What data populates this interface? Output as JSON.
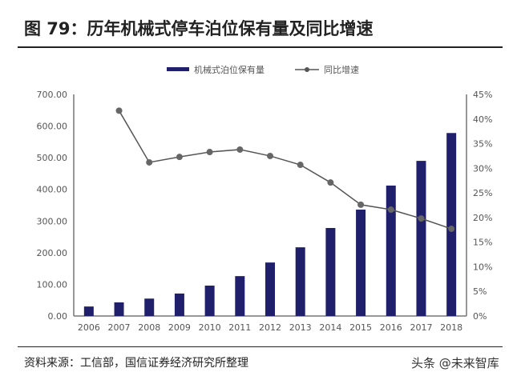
{
  "title": "图 79：历年机械式停车泊位保有量及同比增速",
  "source": "资料来源：工信部，国信证券经济研究所整理",
  "watermark": "头条 @未来智库",
  "colors": {
    "bar": "#1f1f6b",
    "line": "#555555"
  },
  "chart_data": {
    "type": "bar+line",
    "categories": [
      "2006",
      "2007",
      "2008",
      "2009",
      "2010",
      "2011",
      "2012",
      "2013",
      "2014",
      "2015",
      "2016",
      "2017",
      "2018"
    ],
    "series": [
      {
        "name": "机械式泊位保有量",
        "type": "bar",
        "axis": "left",
        "values": [
          30,
          43,
          55,
          71,
          96,
          126,
          169,
          217,
          278,
          336,
          412,
          490,
          578
        ]
      },
      {
        "name": "同比增速",
        "type": "line",
        "axis": "right",
        "values": [
          null,
          41.7,
          31.2,
          32.3,
          33.3,
          33.8,
          32.5,
          30.7,
          27.1,
          22.6,
          21.6,
          19.8,
          17.7
        ]
      }
    ],
    "left_axis": {
      "ylim": [
        0,
        700
      ],
      "ticks": [
        "0.00",
        "100.00",
        "200.00",
        "300.00",
        "400.00",
        "500.00",
        "600.00",
        "700.00"
      ]
    },
    "right_axis": {
      "ylim": [
        0,
        45
      ],
      "ticks": [
        "0%",
        "5%",
        "10%",
        "15%",
        "20%",
        "25%",
        "30%",
        "35%",
        "40%",
        "45%"
      ]
    },
    "legend": "top-right",
    "grid": false
  }
}
